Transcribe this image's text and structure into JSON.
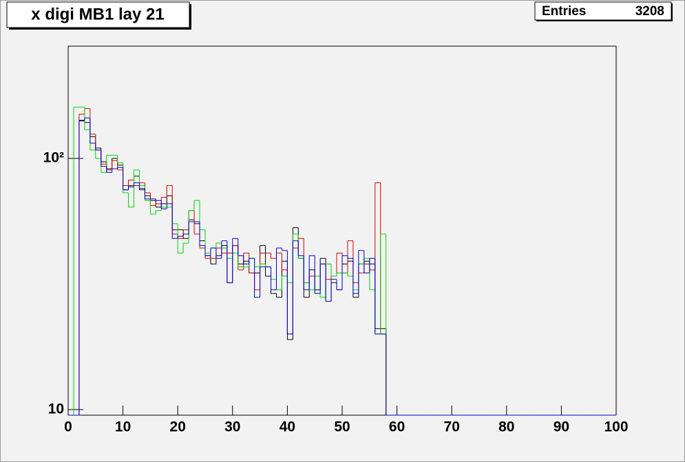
{
  "chart_data": {
    "type": "histogram",
    "title": "x digi MB1 lay 21",
    "stats_label": "Entries",
    "stats_value": 3208,
    "log_y": true,
    "xlim": [
      0,
      100
    ],
    "ylim": [
      9.5,
      280
    ],
    "xticks": [
      0,
      10,
      20,
      30,
      40,
      50,
      60,
      70,
      80,
      90,
      100
    ],
    "yticks": [
      10,
      {
        "value": 100,
        "label": "10²"
      }
    ],
    "bins": [
      0,
      1,
      2,
      3,
      4,
      5,
      6,
      7,
      8,
      9,
      10,
      11,
      12,
      13,
      14,
      15,
      16,
      17,
      18,
      19,
      20,
      21,
      22,
      23,
      24,
      25,
      26,
      27,
      28,
      29,
      30,
      31,
      32,
      33,
      34,
      35,
      36,
      37,
      38,
      39,
      40,
      41,
      42,
      43,
      44,
      45,
      46,
      47,
      48,
      49,
      50,
      51,
      52,
      53,
      54,
      55,
      56,
      57,
      58,
      59,
      60,
      61,
      62,
      63,
      64,
      65,
      66,
      67,
      68,
      69,
      70,
      71,
      72,
      73,
      74,
      75,
      76,
      77,
      78,
      79,
      80,
      81,
      82,
      83,
      84,
      85,
      86,
      87,
      88,
      89,
      90,
      91,
      92,
      93,
      94,
      95,
      96,
      97,
      98,
      99,
      100
    ],
    "series": [
      {
        "color": "#000000",
        "values": [
          0,
          0,
          141,
          139,
          122,
          110,
          97,
          91,
          100,
          94,
          75,
          78,
          85,
          75,
          71,
          68,
          64,
          66,
          71,
          52,
          52,
          48,
          57,
          55,
          47,
          41,
          38,
          41,
          45,
          32,
          45,
          38,
          39,
          35,
          35,
          45,
          34,
          29,
          28,
          39,
          19,
          53,
          40,
          28,
          36,
          30,
          40,
          27,
          32,
          30,
          38,
          39,
          28,
          38,
          39,
          38,
          21,
          21,
          0,
          0,
          0,
          0,
          0,
          0,
          0,
          0,
          0,
          0,
          0,
          0,
          0,
          0,
          0,
          0,
          0,
          0,
          0,
          0,
          0,
          0,
          0,
          0,
          0,
          0,
          0,
          0,
          0,
          0,
          0,
          0,
          0,
          0,
          0,
          0,
          0,
          0,
          0,
          0,
          0,
          0
        ]
      },
      {
        "color": "#d40000",
        "values": [
          0,
          0,
          150,
          158,
          125,
          108,
          95,
          90,
          98,
          90,
          78,
          82,
          78,
          80,
          73,
          65,
          66,
          70,
          78,
          50,
          48,
          52,
          62,
          50,
          44,
          40,
          40,
          44,
          42,
          42,
          45,
          36,
          42,
          35,
          30,
          42,
          42,
          40,
          42,
          36,
          20,
          44,
          48,
          32,
          34,
          34,
          38,
          33,
          34,
          42,
          35,
          47,
          32,
          35,
          38,
          36,
          80,
          20,
          0,
          0,
          0,
          0,
          0,
          0,
          0,
          0,
          0,
          0,
          0,
          0,
          0,
          0,
          0,
          0,
          0,
          0,
          0,
          0,
          0,
          0,
          0,
          0,
          0,
          0,
          0,
          0,
          0,
          0,
          0,
          0,
          0,
          0,
          0,
          0,
          0,
          0,
          0,
          0,
          0,
          0
        ]
      },
      {
        "color": "#00d400",
        "values": [
          0,
          160,
          160,
          130,
          108,
          100,
          88,
          103,
          103,
          96,
          73,
          64,
          90,
          78,
          68,
          60,
          62,
          64,
          64,
          55,
          42,
          46,
          62,
          68,
          52,
          42,
          44,
          46,
          44,
          40,
          42,
          37,
          37,
          40,
          37,
          38,
          37,
          33,
          30,
          34,
          32,
          50,
          40,
          32,
          30,
          34,
          28,
          38,
          34,
          35,
          35,
          34,
          30,
          38,
          40,
          30,
          20,
          50,
          0,
          0,
          0,
          0,
          0,
          0,
          0,
          0,
          0,
          0,
          0,
          0,
          0,
          0,
          0,
          0,
          0,
          0,
          0,
          0,
          0,
          0,
          0,
          0,
          0,
          0,
          0,
          0,
          0,
          0,
          0,
          0,
          0,
          0,
          0,
          0,
          0,
          0,
          0,
          0,
          0,
          0
        ]
      },
      {
        "color": "#0000cc",
        "values": [
          0,
          0,
          142,
          145,
          115,
          108,
          93,
          88,
          91,
          92,
          75,
          77,
          80,
          76,
          69,
          69,
          68,
          63,
          66,
          48,
          49,
          50,
          56,
          56,
          45,
          41,
          44,
          40,
          47,
          32,
          48,
          41,
          38,
          40,
          28,
          37,
          37,
          30,
          44,
          43,
          20,
          47,
          41,
          30,
          41,
          29,
          38,
          27,
          33,
          30,
          41,
          40,
          29,
          43,
          35,
          40,
          20,
          20,
          0,
          0,
          0,
          0,
          0,
          0,
          0,
          0,
          0,
          0,
          0,
          0,
          0,
          0,
          0,
          0,
          0,
          0,
          0,
          0,
          0,
          0,
          0,
          0,
          0,
          0,
          0,
          0,
          0,
          0,
          0,
          0,
          0,
          0,
          0,
          0,
          0,
          0,
          0,
          0,
          0,
          0
        ]
      }
    ]
  }
}
